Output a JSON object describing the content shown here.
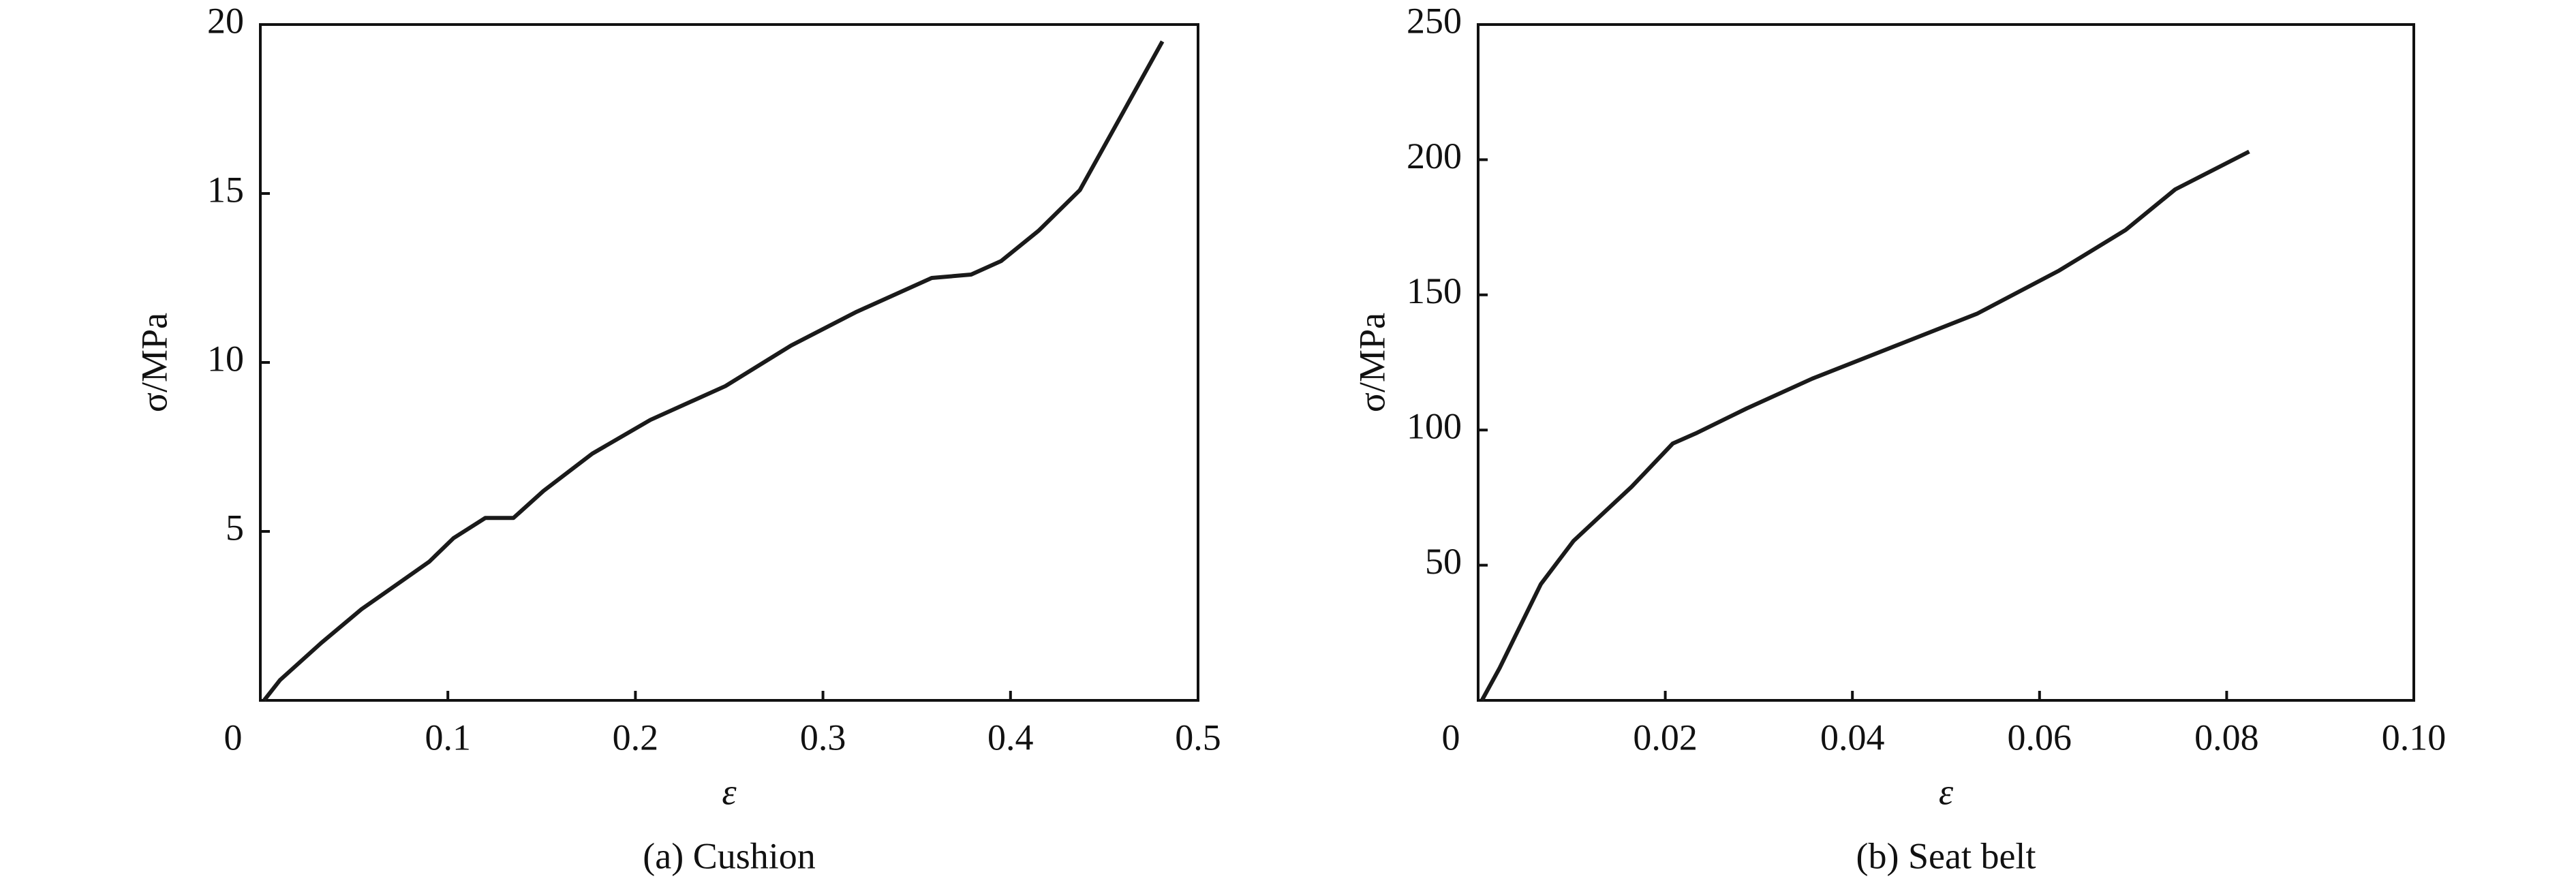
{
  "chart_data": [
    {
      "type": "line",
      "title": "(a) Cushion",
      "xlabel": "ε",
      "ylabel": "σ/MPa",
      "color": "#1a1a1a",
      "xlim": [
        0,
        0.5
      ],
      "ylim": [
        0,
        20
      ],
      "xticks": [
        0,
        0.1,
        0.2,
        0.3,
        0.4,
        0.5
      ],
      "yticks": [
        5,
        10,
        15,
        20
      ],
      "x": [
        0.002,
        0.0105,
        0.0325,
        0.054,
        0.072,
        0.09,
        0.103,
        0.12,
        0.135,
        0.151,
        0.177,
        0.208,
        0.248,
        0.283,
        0.318,
        0.358,
        0.379,
        0.395,
        0.415,
        0.437,
        0.459,
        0.481
      ],
      "values": [
        0,
        0.6,
        1.7,
        2.7,
        3.4,
        4.1,
        4.8,
        5.4,
        5.4,
        6.2,
        7.3,
        8.3,
        9.3,
        10.5,
        11.5,
        12.5,
        12.6,
        13.0,
        13.9,
        15.1,
        17.3,
        19.5
      ]
    },
    {
      "type": "line",
      "title": "(b) Seat belt",
      "xlabel": "ε",
      "ylabel": "σ/MPa",
      "color": "#1a1a1a",
      "xlim": [
        0,
        0.1
      ],
      "ylim": [
        0,
        250
      ],
      "xticks": [
        0,
        0.02,
        0.04,
        0.06,
        0.08,
        {
          "value": 0.1,
          "label": "0.10"
        }
      ],
      "yticks": [
        50,
        100,
        150,
        200,
        250
      ],
      "x": [
        0.0004,
        0.0023,
        0.004,
        0.0067,
        0.0102,
        0.0164,
        0.0208,
        0.0234,
        0.0287,
        0.0357,
        0.0445,
        0.0533,
        0.0621,
        0.0692,
        0.0745,
        0.0824
      ],
      "values": [
        0,
        12,
        24,
        43,
        59,
        79,
        95,
        99,
        108,
        119,
        131,
        143,
        159,
        174,
        189,
        203
      ]
    }
  ]
}
